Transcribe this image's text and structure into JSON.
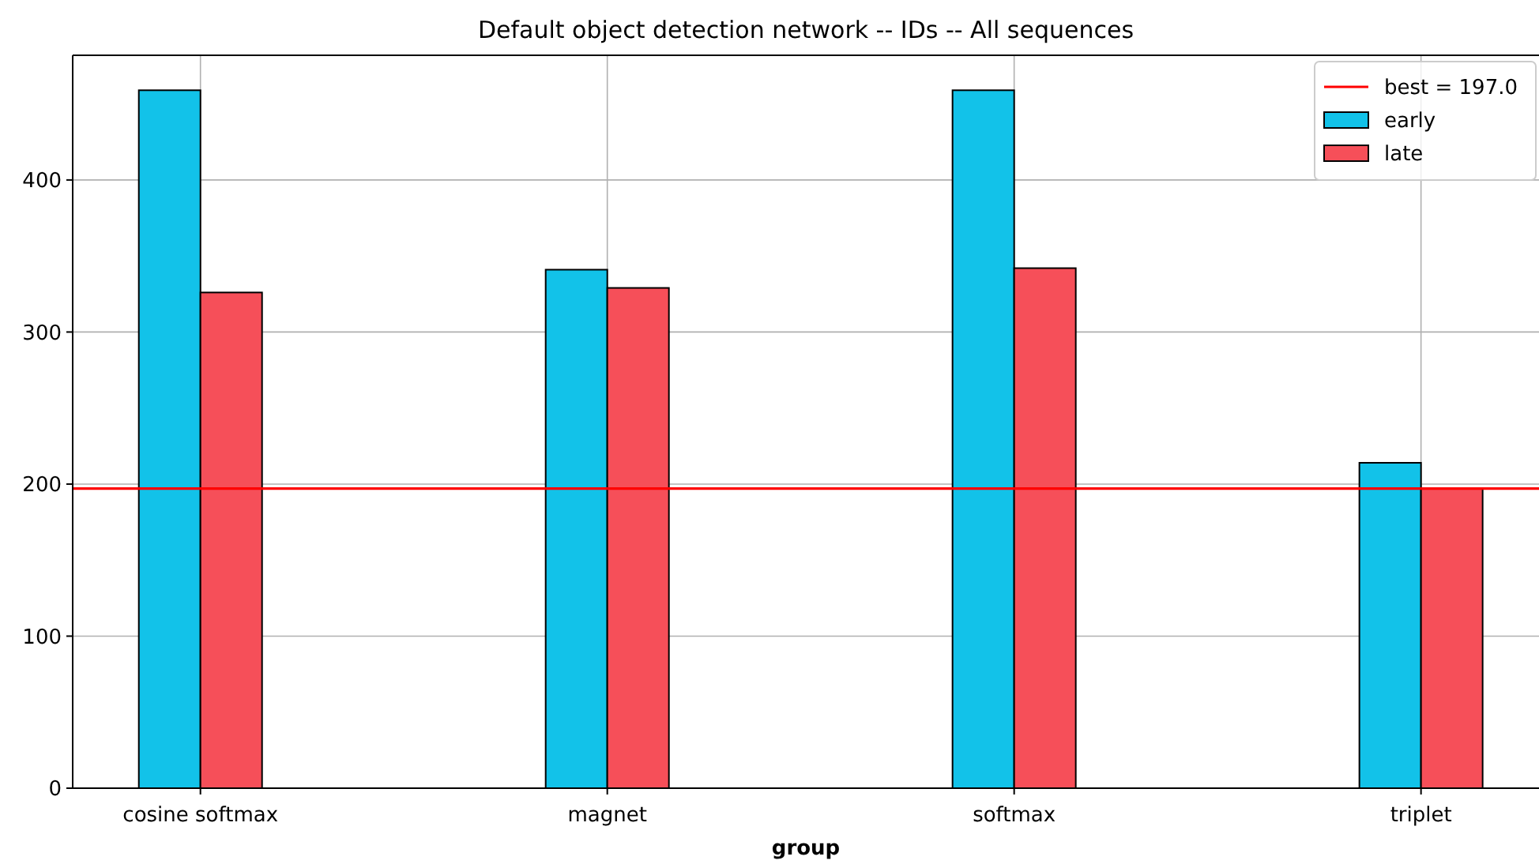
{
  "chart_data": {
    "type": "bar",
    "title": "Default object detection network -- IDs -- All sequences",
    "xlabel": "group",
    "categories": [
      "cosine softmax",
      "magnet",
      "softmax",
      "triplet"
    ],
    "series": [
      {
        "name": "early",
        "color": "#12c2e9",
        "values": [
          459,
          341,
          459,
          214
        ]
      },
      {
        "name": "late",
        "color": "#f64f59",
        "values": [
          326,
          329,
          342,
          197
        ]
      }
    ],
    "ref_lines": [
      {
        "axis": "y",
        "value": 197,
        "label": "best = 197.0",
        "color": "#ff0000"
      }
    ],
    "ylim": [
      0,
      482
    ],
    "yticks": [
      0,
      100,
      200,
      300,
      400
    ],
    "grid": true,
    "legend": "top right"
  }
}
